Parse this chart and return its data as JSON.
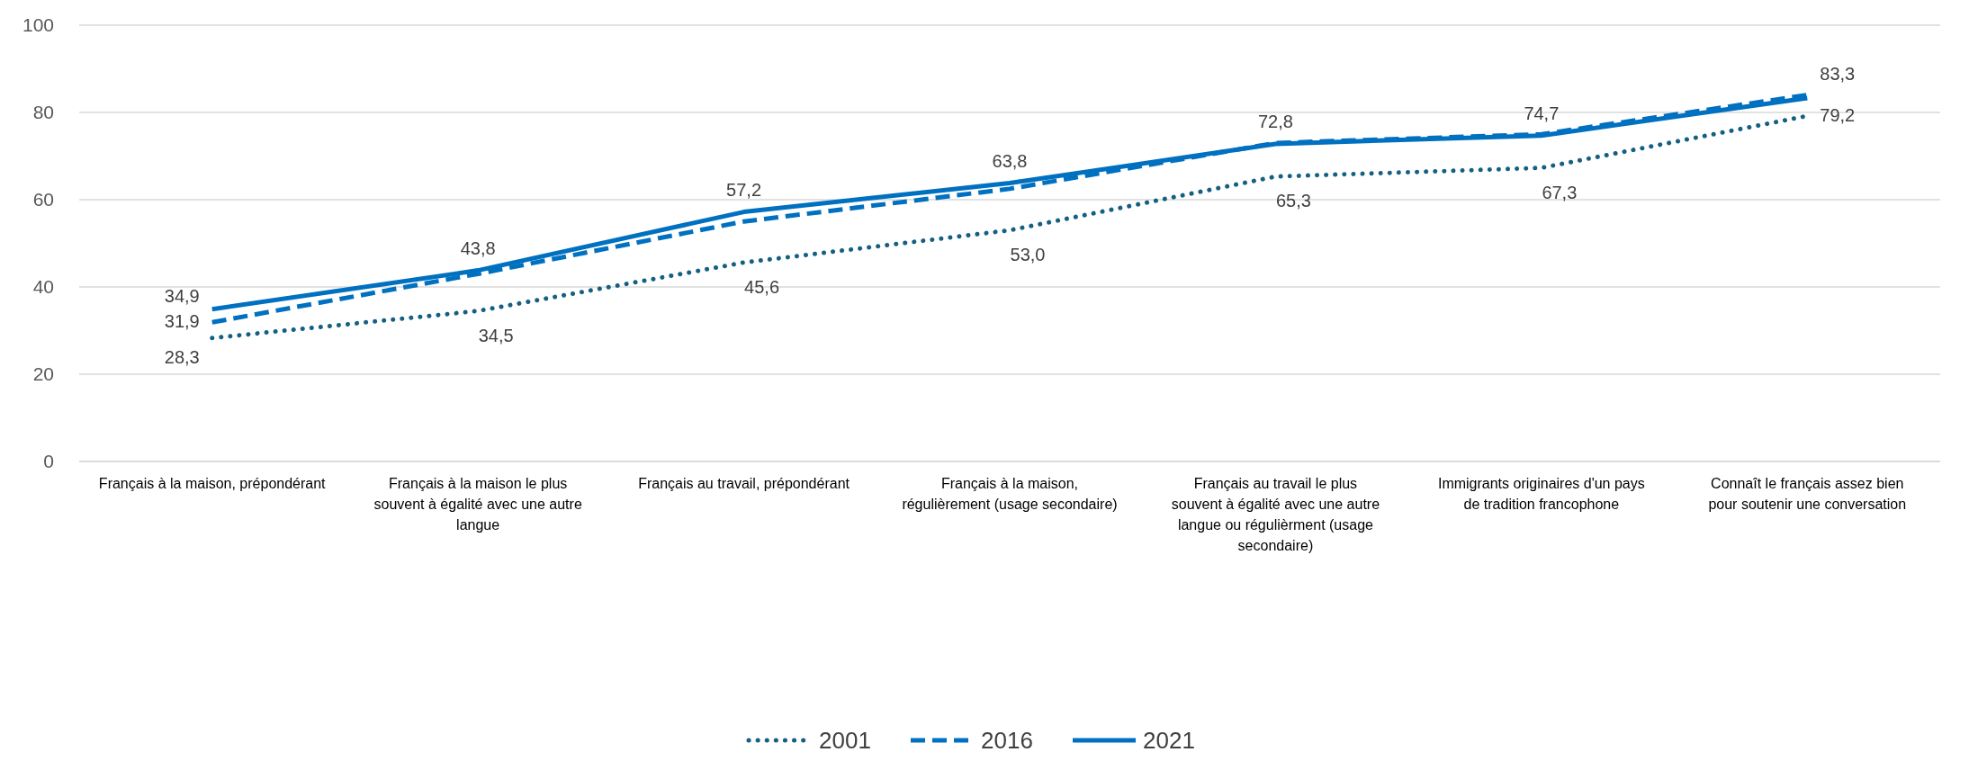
{
  "chart_data": {
    "type": "line",
    "categories": [
      "Français à la maison, prépondérant",
      "Français à la maison le plus souvent à égalité avec une autre langue",
      "Français au travail, prépondérant",
      "Français à la maison, régulièrement (usage secondaire)",
      "Français au travail le plus souvent à égalité avec une autre langue ou régulièrment (usage secondaire)",
      "Immigrants originaires d'un pays de tradition francophone",
      "Connaît le français assez bien pour soutenir une conversation"
    ],
    "series": [
      {
        "name": "2001",
        "color": "#156082",
        "line_style": "dotted",
        "values": [
          28.3,
          34.5,
          45.6,
          53.0,
          65.3,
          67.3,
          79.2
        ],
        "value_labels": [
          "28,3",
          "34,5",
          "45,6",
          "53,0",
          "65,3",
          "67,3",
          "79,2"
        ]
      },
      {
        "name": "2016",
        "color": "#0070c0",
        "line_style": "dashed",
        "values": [
          31.9,
          43.0,
          55.0,
          62.5,
          73.0,
          75.0,
          84.0
        ],
        "value_labels": [
          "31,9",
          null,
          null,
          null,
          null,
          null,
          null
        ]
      },
      {
        "name": "2021",
        "color": "#0070c0",
        "line_style": "solid",
        "values": [
          34.9,
          43.8,
          57.2,
          63.8,
          72.8,
          74.7,
          83.3
        ],
        "value_labels": [
          "34,9",
          "43,8",
          "57,2",
          "63,8",
          "72,8",
          "74,7",
          "83,3"
        ]
      }
    ],
    "ylim": [
      0,
      100
    ],
    "yticks": [
      0,
      20,
      40,
      60,
      80,
      100
    ],
    "grid": "y",
    "legend": "bottom",
    "marker": "none"
  }
}
